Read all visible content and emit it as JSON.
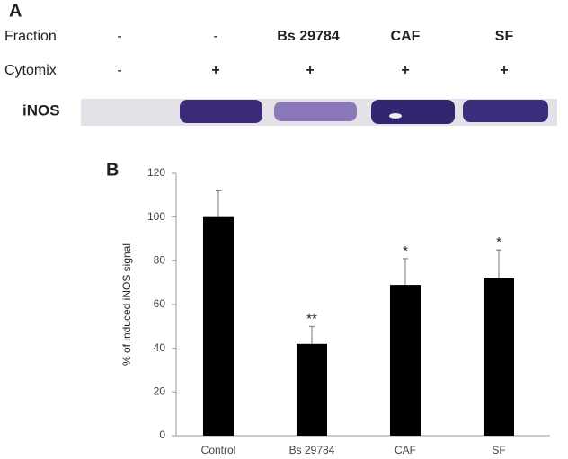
{
  "panel_a": {
    "label": "A",
    "rows": [
      {
        "label": "Fraction",
        "cells": [
          "-",
          "-",
          "Bs 29784",
          "CAF",
          "SF"
        ]
      },
      {
        "label": "Cytomix",
        "cells": [
          "-",
          "+",
          "+",
          "+",
          "+"
        ]
      }
    ],
    "blot_label": "iNOS"
  },
  "chart_data": {
    "type": "bar",
    "panel_label": "B",
    "y_label": "% of induced iNOS signal",
    "categories": [
      "Control",
      "Bs 29784",
      "CAF",
      "SF"
    ],
    "values": [
      100,
      42,
      69,
      72
    ],
    "errors": [
      12,
      8,
      12,
      13
    ],
    "significance": [
      null,
      "**",
      "*",
      "*"
    ],
    "color": "#000000",
    "ylim": [
      0,
      120
    ],
    "yticks": [
      0,
      20,
      40,
      60,
      80,
      100,
      120
    ],
    "grid": false
  }
}
